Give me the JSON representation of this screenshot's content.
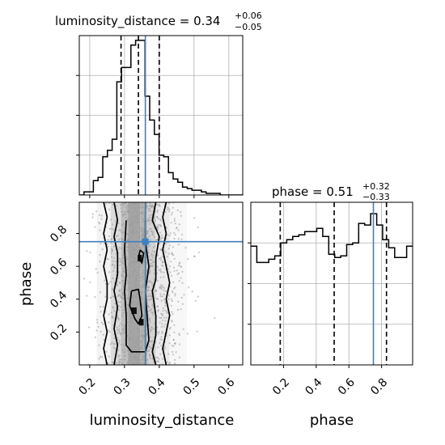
{
  "chart_data": [
    {
      "type": "histogram",
      "panel": "luminosity_distance marginal",
      "title_name": "luminosity_distance",
      "title_value": "0.34",
      "title_plus": "+0.06",
      "title_minus": "−0.05",
      "xlim": [
        0.17,
        0.64
      ],
      "ylim": [
        0,
        1.0
      ],
      "x_ticks": [
        0.2,
        0.3,
        0.4,
        0.5,
        0.6
      ],
      "bins": [
        0.17,
        0.1835,
        0.197,
        0.2105,
        0.224,
        0.2375,
        0.251,
        0.2645,
        0.278,
        0.2915,
        0.305,
        0.3185,
        0.332,
        0.3455,
        0.359,
        0.3725,
        0.386,
        0.3995,
        0.413,
        0.4265,
        0.44,
        0.4535,
        0.467,
        0.4805,
        0.494,
        0.5075,
        0.521,
        0.5345,
        0.548,
        0.5615,
        0.575,
        0.5885,
        0.602,
        0.6155,
        0.629,
        0.64
      ],
      "counts": [
        0.0,
        0.02,
        0.02,
        0.09,
        0.11,
        0.24,
        0.28,
        0.35,
        0.71,
        0.8,
        0.8,
        0.94,
        0.97,
        0.97,
        0.62,
        0.47,
        0.38,
        0.25,
        0.24,
        0.14,
        0.1,
        0.08,
        0.05,
        0.04,
        0.03,
        0.03,
        0.02,
        0.01,
        0.01,
        0.01,
        0.0,
        0.0,
        0.0,
        0.0,
        0.0
      ],
      "quantile_lines": [
        0.29,
        0.34,
        0.4
      ],
      "truth": 0.36
    },
    {
      "type": "histogram",
      "panel": "phase marginal",
      "title_name": "phase",
      "title_value": "0.51",
      "title_plus": "+0.32",
      "title_minus": "−0.33",
      "xlim": [
        0.0,
        0.99
      ],
      "ylim": [
        0,
        1.0
      ],
      "x_ticks": [
        0.2,
        0.4,
        0.6,
        0.8
      ],
      "bins": [
        0.0,
        0.0366,
        0.0733,
        0.11,
        0.1466,
        0.1833,
        0.22,
        0.2566,
        0.2933,
        0.33,
        0.3666,
        0.4033,
        0.44,
        0.4766,
        0.5133,
        0.55,
        0.5866,
        0.6233,
        0.66,
        0.6966,
        0.7333,
        0.77,
        0.8066,
        0.8433,
        0.88,
        0.9166,
        0.9533,
        0.99
      ],
      "counts": [
        0.73,
        0.63,
        0.63,
        0.65,
        0.67,
        0.75,
        0.77,
        0.79,
        0.8,
        0.82,
        0.82,
        0.84,
        0.79,
        0.68,
        0.66,
        0.67,
        0.74,
        0.75,
        0.87,
        0.86,
        0.93,
        0.86,
        0.77,
        0.72,
        0.66,
        0.66,
        0.73
      ],
      "quantile_lines": [
        0.18,
        0.51,
        0.83
      ],
      "truth": 0.75
    },
    {
      "type": "scatter",
      "panel": "2D luminosity_distance vs phase",
      "xlabel": "luminosity_distance",
      "ylabel": "phase",
      "xlim": [
        0.17,
        0.64
      ],
      "ylim": [
        0.0,
        0.99
      ],
      "x_ticks": [
        0.2,
        0.3,
        0.4,
        0.5,
        0.6
      ],
      "y_ticks": [
        0.2,
        0.4,
        0.6,
        0.8
      ],
      "truth": [
        0.36,
        0.75
      ],
      "density_columns": [
        {
          "x": [
            0.22,
            0.26
          ],
          "shade": 0.06
        },
        {
          "x": [
            0.26,
            0.29
          ],
          "shade": 0.18
        },
        {
          "x": [
            0.29,
            0.31
          ],
          "shade": 0.32
        },
        {
          "x": [
            0.31,
            0.345
          ],
          "shade": 0.45
        },
        {
          "x": [
            0.345,
            0.365
          ],
          "shade": 0.38
        },
        {
          "x": [
            0.365,
            0.39
          ],
          "shade": 0.22
        },
        {
          "x": [
            0.39,
            0.43
          ],
          "shade": 0.1
        },
        {
          "x": [
            0.43,
            0.48
          ],
          "shade": 0.04
        }
      ],
      "contours": [
        {
          "level": "outer",
          "points": [
            [
              0.24,
              0.99
            ],
            [
              0.25,
              0.9
            ],
            [
              0.24,
              0.8
            ],
            [
              0.25,
              0.7
            ],
            [
              0.24,
              0.6
            ],
            [
              0.25,
              0.5
            ],
            [
              0.25,
              0.4
            ],
            [
              0.24,
              0.3
            ],
            [
              0.25,
              0.2
            ],
            [
              0.24,
              0.1
            ],
            [
              0.25,
              0.0
            ]
          ]
        },
        {
          "level": "outer",
          "points": [
            [
              0.42,
              0.99
            ],
            [
              0.41,
              0.9
            ],
            [
              0.42,
              0.8
            ],
            [
              0.41,
              0.7
            ],
            [
              0.42,
              0.6
            ],
            [
              0.43,
              0.5
            ],
            [
              0.42,
              0.4
            ],
            [
              0.43,
              0.3
            ],
            [
              0.42,
              0.2
            ],
            [
              0.41,
              0.1
            ],
            [
              0.42,
              0.0
            ]
          ]
        },
        {
          "level": "mid",
          "points": [
            [
              0.27,
              0.99
            ],
            [
              0.28,
              0.88
            ],
            [
              0.27,
              0.78
            ],
            [
              0.28,
              0.68
            ],
            [
              0.28,
              0.55
            ],
            [
              0.27,
              0.45
            ],
            [
              0.28,
              0.35
            ],
            [
              0.27,
              0.22
            ],
            [
              0.28,
              0.12
            ],
            [
              0.27,
              0.0
            ]
          ]
        },
        {
          "level": "mid",
          "points": [
            [
              0.39,
              0.99
            ],
            [
              0.38,
              0.88
            ],
            [
              0.4,
              0.78
            ],
            [
              0.39,
              0.65
            ],
            [
              0.39,
              0.52
            ],
            [
              0.38,
              0.45
            ],
            [
              0.39,
              0.3
            ],
            [
              0.39,
              0.18
            ],
            [
              0.38,
              0.08
            ],
            [
              0.39,
              0.0
            ]
          ]
        },
        {
          "level": "inner",
          "points": [
            [
              0.305,
              0.88
            ],
            [
              0.3,
              0.7
            ],
            [
              0.305,
              0.55
            ],
            [
              0.3,
              0.45
            ],
            [
              0.305,
              0.3
            ],
            [
              0.305,
              0.12
            ],
            [
              0.32,
              0.08
            ],
            [
              0.36,
              0.08
            ],
            [
              0.37,
              0.15
            ],
            [
              0.365,
              0.3
            ],
            [
              0.36,
              0.45
            ],
            [
              0.37,
              0.6
            ],
            [
              0.36,
              0.75
            ],
            [
              0.36,
              0.88
            ]
          ]
        },
        {
          "level": "core",
          "points": [
            [
              0.32,
              0.45
            ],
            [
              0.315,
              0.36
            ],
            [
              0.33,
              0.28
            ],
            [
              0.34,
              0.25
            ],
            [
              0.35,
              0.3
            ],
            [
              0.345,
              0.4
            ],
            [
              0.34,
              0.46
            ],
            [
              0.32,
              0.45
            ]
          ]
        },
        {
          "level": "core",
          "points": [
            [
              0.345,
              0.7
            ],
            [
              0.34,
              0.65
            ],
            [
              0.35,
              0.62
            ],
            [
              0.355,
              0.68
            ],
            [
              0.345,
              0.7
            ]
          ]
        }
      ],
      "dark_blocks": [
        {
          "x": [
            0.32,
            0.335
          ],
          "y": [
            0.31,
            0.35
          ]
        },
        {
          "x": [
            0.342,
            0.355
          ],
          "y": [
            0.24,
            0.28
          ]
        },
        {
          "x": [
            0.338,
            0.35
          ],
          "y": [
            0.63,
            0.67
          ]
        }
      ],
      "scatter_seed": 7,
      "scatter_count": 1400
    }
  ],
  "colors": {
    "hist": "#000000",
    "truth": "#3e80bf",
    "grid": "#b0b0b0",
    "points": "#9a9a9a"
  }
}
